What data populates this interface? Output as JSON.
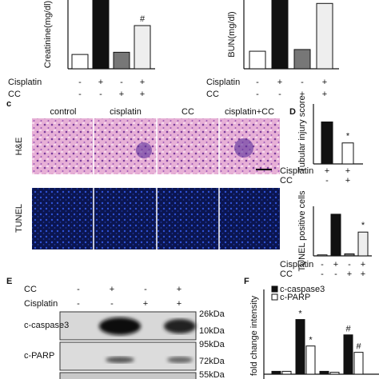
{
  "panel_a": {
    "ylabel": "Creatinine(mg/dl)",
    "ylim": [
      0,
      2.5
    ],
    "values": [
      0.52,
      3,
      0.6,
      1.57
    ],
    "colors": [
      "#ffffff",
      "#111111",
      "#777777",
      "#eeeeee"
    ],
    "conditions": [
      {
        "name": "Cisplatin",
        "signs": [
          "-",
          "+",
          "-",
          "+"
        ]
      },
      {
        "name": "CC",
        "signs": [
          "-",
          "-",
          "+",
          "+"
        ]
      }
    ],
    "annotations": [
      {
        "bar": 3,
        "text": "#"
      }
    ]
  },
  "panel_b": {
    "ylabel": "BUN(mg/dl)",
    "ylim": [
      0,
      200
    ],
    "values": [
      51,
      220,
      56,
      190
    ],
    "colors": [
      "#ffffff",
      "#111111",
      "#777777",
      "#eeeeee"
    ],
    "conditions": [
      {
        "name": "Cisplatin",
        "signs": [
          "-",
          "+",
          "-",
          "+"
        ]
      },
      {
        "name": "CC",
        "signs": [
          "-",
          "-",
          "+",
          "+"
        ]
      }
    ],
    "annotations": []
  },
  "panel_c": {
    "label": "c",
    "columns": [
      "control",
      "cisplatin",
      "CC",
      "cisplatin+CC"
    ],
    "rows": [
      "H&E",
      "TUNEL"
    ]
  },
  "panel_d": {
    "label": "D",
    "charts": [
      {
        "ylabel": "Tubular injury score",
        "ylim": [
          0,
          4
        ],
        "values": [
          2.8,
          1.4
        ],
        "colors": [
          "#111111",
          "#ffffff"
        ],
        "conditions": [
          {
            "name": "Cisplatin",
            "signs": [
              "+",
              "+"
            ]
          },
          {
            "name": "CC",
            "signs": [
              "-",
              "+"
            ]
          }
        ],
        "annotations": [
          {
            "bar": 1,
            "text": "*"
          }
        ]
      },
      {
        "ylabel": "TUNEL positive cells",
        "ylim": [
          0,
          50
        ],
        "values": [
          1,
          42,
          2,
          24
        ],
        "colors": [
          "#ffffff",
          "#111111",
          "#777777",
          "#eeeeee"
        ],
        "conditions": [
          {
            "name": "Cisplatin",
            "signs": [
              "-",
              "+",
              "-",
              "+"
            ]
          },
          {
            "name": "CC",
            "signs": [
              "-",
              "-",
              "+",
              "+"
            ]
          }
        ],
        "annotations": [
          {
            "bar": 3,
            "text": "*"
          }
        ]
      }
    ]
  },
  "panel_e": {
    "label": "E",
    "conditions": [
      {
        "name": "CC",
        "signs": [
          "-",
          "+",
          "-",
          "+"
        ]
      },
      {
        "name": "Cisplatin",
        "signs": [
          "-",
          "-",
          "+",
          "+"
        ]
      }
    ],
    "bands": [
      "c-caspase3",
      "c-PARP"
    ],
    "markers": [
      "26kDa",
      "10kDa",
      "95kDa",
      "72kDa",
      "55kDa"
    ]
  },
  "panel_f": {
    "label": "F",
    "ylabel": "fold change intensity",
    "ylim": [
      0,
      4
    ],
    "series": [
      {
        "name": "c-caspase3",
        "color": "#111111",
        "values": [
          0.15,
          2.85,
          0.15,
          2.05
        ],
        "annotations": [
          {
            "bar": 1,
            "text": "*"
          },
          {
            "bar": 3,
            "text": "#"
          }
        ]
      },
      {
        "name": "c-PARP",
        "color": "#ffffff",
        "values": [
          0.15,
          1.47,
          0.1,
          1.14
        ],
        "annotations": [
          {
            "bar": 1,
            "text": "*"
          },
          {
            "bar": 3,
            "text": "#"
          }
        ]
      }
    ]
  }
}
